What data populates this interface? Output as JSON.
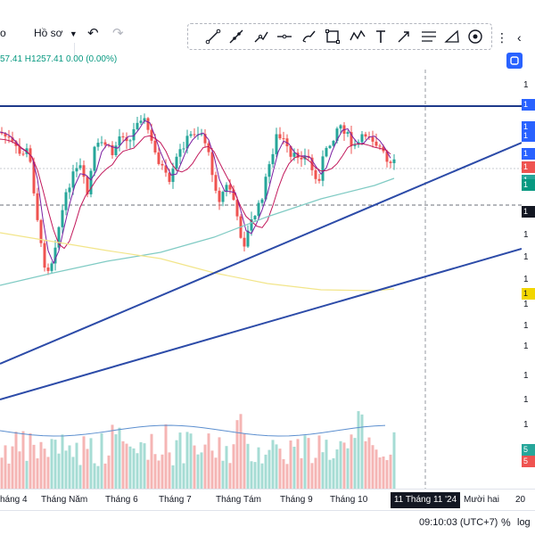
{
  "toolbar": {
    "profile_label": "Hồ sơ",
    "profile_chevron": "chevron-down-icon",
    "undo_icon": "undo-icon",
    "redo_icon": "redo-icon"
  },
  "drawing_tools": [
    {
      "name": "trend-line-icon"
    },
    {
      "name": "ray-icon"
    },
    {
      "name": "info-line-icon"
    },
    {
      "name": "horizontal-ray-icon"
    },
    {
      "name": "brush-icon"
    },
    {
      "name": "rectangle-icon"
    },
    {
      "name": "path-icon"
    },
    {
      "name": "text-icon"
    },
    {
      "name": "arrow-icon"
    },
    {
      "name": "fib-retracement-icon"
    },
    {
      "name": "shape-icon"
    },
    {
      "name": "visibility-icon"
    }
  ],
  "right_icons": [
    "share-icon",
    "more-icon"
  ],
  "ohlc_text": "57.41  H1257.41  0.00 (0.00%)",
  "price_axis": {
    "labels": [
      {
        "text": "1",
        "bg": "#2962ff"
      },
      {
        "text": "1",
        "bg": "#2962ff"
      },
      {
        "text": "1",
        "bg": "#2962ff"
      },
      {
        "text": "1",
        "bg": "#2962ff"
      },
      {
        "text": "1",
        "bg": "#ef5350"
      },
      {
        "text": "1",
        "bg": "#26a69a"
      },
      {
        "text": "1",
        "bg": "#089981"
      },
      {
        "text": "1",
        "bg": "#131722"
      },
      {
        "text": "1",
        "bg": "#f2d600"
      },
      {
        "text": "5",
        "bg": "#26a69a"
      },
      {
        "text": "5",
        "bg": "#ef5350"
      }
    ],
    "tick_labels": [
      "1",
      "1",
      "1",
      "1",
      "1",
      "1",
      "1",
      "1",
      "1",
      "1"
    ]
  },
  "time_axis": {
    "labels": [
      "háng 4",
      "Tháng Năm",
      "Tháng 6",
      "Tháng 7",
      "Tháng Tám",
      "Tháng 9",
      "Tháng 10",
      "Mười hai",
      "20"
    ],
    "crosshair_date": "11 Tháng 11 '24"
  },
  "bottom": {
    "time": "09:10:03 (UTC+7)",
    "percent": "%",
    "log": "log"
  },
  "colors": {
    "up": "#26a69a",
    "down": "#ef5350",
    "trendline": "#2962ff",
    "ma_short": "#9c27b0",
    "ma_long": "#f2d600",
    "ma_mid": "#80cbc4"
  }
}
